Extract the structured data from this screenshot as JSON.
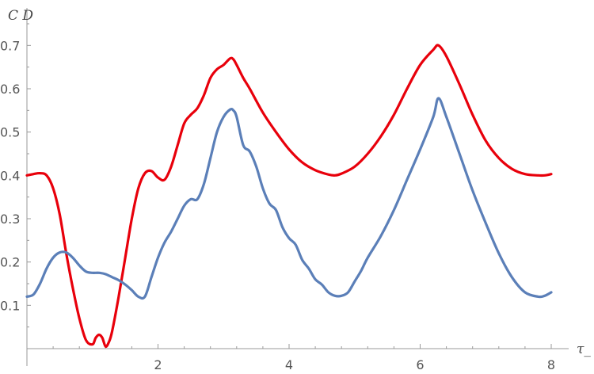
{
  "chart_data": {
    "type": "line",
    "title": "",
    "xlabel": "τ_",
    "ylabel": "C D",
    "xlim": [
      0,
      8
    ],
    "ylim": [
      0,
      0.75
    ],
    "x_ticks": [
      2,
      4,
      6,
      8
    ],
    "x_tick_labels": [
      "2",
      "4",
      "6",
      "8"
    ],
    "y_ticks": [
      0.1,
      0.2,
      0.3,
      0.4,
      0.5,
      0.6,
      0.7
    ],
    "y_tick_labels": [
      "0.1",
      "0.2",
      "0.3",
      "0.4",
      "0.5",
      "0.6",
      "0.7"
    ],
    "grid": false,
    "legend": "none",
    "series": [
      {
        "color": "#e8000b",
        "x": [
          0,
          0.1,
          0.2,
          0.3,
          0.4,
          0.5,
          0.6,
          0.7,
          0.8,
          0.9,
          1.0,
          1.05,
          1.1,
          1.15,
          1.2,
          1.25,
          1.3,
          1.4,
          1.5,
          1.6,
          1.7,
          1.8,
          1.9,
          2.0,
          2.1,
          2.2,
          2.3,
          2.4,
          2.5,
          2.6,
          2.7,
          2.8,
          2.9,
          3.0,
          3.1,
          3.15,
          3.2,
          3.3,
          3.4,
          3.6,
          3.8,
          4.0,
          4.2,
          4.4,
          4.6,
          4.7,
          4.8,
          5.0,
          5.2,
          5.4,
          5.6,
          5.8,
          6.0,
          6.2,
          6.28,
          6.4,
          6.6,
          6.8,
          7.0,
          7.2,
          7.4,
          7.6,
          7.8,
          7.9,
          8.0
        ],
        "y": [
          0.4,
          0.403,
          0.405,
          0.4,
          0.37,
          0.31,
          0.22,
          0.14,
          0.07,
          0.02,
          0.01,
          0.025,
          0.032,
          0.025,
          0.005,
          0.015,
          0.04,
          0.12,
          0.21,
          0.3,
          0.37,
          0.405,
          0.41,
          0.395,
          0.39,
          0.42,
          0.47,
          0.52,
          0.54,
          0.555,
          0.585,
          0.625,
          0.645,
          0.655,
          0.67,
          0.668,
          0.655,
          0.625,
          0.6,
          0.545,
          0.5,
          0.46,
          0.43,
          0.412,
          0.402,
          0.4,
          0.404,
          0.42,
          0.45,
          0.49,
          0.54,
          0.6,
          0.655,
          0.69,
          0.7,
          0.675,
          0.61,
          0.54,
          0.48,
          0.44,
          0.415,
          0.403,
          0.4,
          0.4,
          0.403
        ]
      },
      {
        "color": "#5b7fb8",
        "x": [
          0,
          0.1,
          0.2,
          0.3,
          0.4,
          0.5,
          0.6,
          0.7,
          0.8,
          0.9,
          1.0,
          1.1,
          1.2,
          1.3,
          1.4,
          1.5,
          1.6,
          1.7,
          1.8,
          1.9,
          2.0,
          2.1,
          2.2,
          2.3,
          2.4,
          2.5,
          2.6,
          2.7,
          2.8,
          2.9,
          3.0,
          3.1,
          3.15,
          3.2,
          3.3,
          3.4,
          3.5,
          3.6,
          3.7,
          3.8,
          3.9,
          4.0,
          4.1,
          4.2,
          4.3,
          4.4,
          4.5,
          4.6,
          4.7,
          4.8,
          4.9,
          5.0,
          5.1,
          5.2,
          5.4,
          5.6,
          5.8,
          6.0,
          6.2,
          6.28,
          6.4,
          6.6,
          6.8,
          7.0,
          7.2,
          7.4,
          7.6,
          7.8,
          7.9,
          8.0
        ],
        "y": [
          0.12,
          0.125,
          0.15,
          0.185,
          0.21,
          0.222,
          0.222,
          0.21,
          0.192,
          0.178,
          0.175,
          0.175,
          0.172,
          0.165,
          0.158,
          0.148,
          0.135,
          0.12,
          0.12,
          0.165,
          0.21,
          0.245,
          0.27,
          0.3,
          0.33,
          0.345,
          0.345,
          0.38,
          0.44,
          0.5,
          0.535,
          0.552,
          0.55,
          0.535,
          0.47,
          0.455,
          0.42,
          0.37,
          0.335,
          0.32,
          0.28,
          0.255,
          0.24,
          0.205,
          0.185,
          0.16,
          0.148,
          0.13,
          0.122,
          0.122,
          0.13,
          0.155,
          0.18,
          0.21,
          0.26,
          0.32,
          0.39,
          0.46,
          0.535,
          0.578,
          0.535,
          0.45,
          0.365,
          0.29,
          0.22,
          0.165,
          0.13,
          0.12,
          0.122,
          0.13
        ]
      }
    ]
  }
}
